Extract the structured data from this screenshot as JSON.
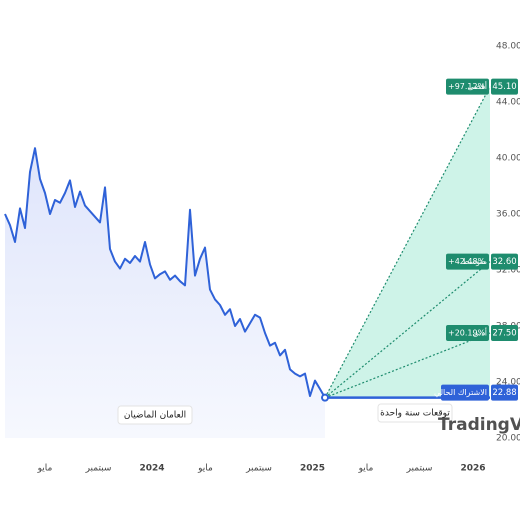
{
  "chart_data": {
    "type": "line",
    "series": [
      {
        "color": "#2f62d8",
        "values": [
          36.0,
          35.2,
          34.0,
          36.4,
          35.0,
          39.0,
          40.7,
          38.5,
          37.5,
          36.0,
          37.0,
          36.8,
          37.5,
          38.4,
          36.5,
          37.6,
          36.6,
          36.2,
          35.8,
          35.4,
          37.9,
          33.5,
          32.6,
          32.1,
          32.8,
          32.5,
          33.0,
          32.6,
          34.0,
          32.4,
          31.4,
          31.7,
          31.9,
          31.3,
          31.6,
          31.2,
          30.9,
          36.3,
          31.6,
          32.8,
          33.6,
          30.6,
          29.9,
          29.5,
          28.8,
          29.2,
          28.0,
          28.5,
          27.6,
          28.2,
          28.8,
          28.6,
          27.5,
          26.6,
          26.8,
          25.9,
          26.3,
          24.9,
          24.6,
          24.4,
          24.6,
          23.0,
          24.1,
          23.5,
          22.88
        ]
      }
    ],
    "ylim": [
      20,
      48
    ],
    "yticks": [
      {
        "value": 20,
        "label": "20.00"
      },
      {
        "value": 24,
        "label": "24.00"
      },
      {
        "value": 28,
        "label": "28.00"
      },
      {
        "value": 32,
        "label": "32.00"
      },
      {
        "value": 36,
        "label": "36.00"
      },
      {
        "value": 40,
        "label": "40.00"
      },
      {
        "value": 44,
        "label": "44.00"
      },
      {
        "value": 48,
        "label": "48.00"
      }
    ],
    "x_labels": [
      "مايو",
      "سبتمبر",
      "2024",
      "مايو",
      "سبتمبر",
      "2025",
      "مايو",
      "سبتمبر",
      "2026"
    ],
    "forecast": {
      "color": "#1e8c6e",
      "levels": [
        {
          "name": "أقصى",
          "change": 97.12,
          "change_label": "+97.12%",
          "value": 45.1,
          "value_label": "45.10"
        },
        {
          "name": "متوسط",
          "change": 42.48,
          "change_label": "+42.48%",
          "value": 32.6,
          "value_label": "32.60"
        },
        {
          "name": "أدنى",
          "change": 20.19,
          "change_label": "+20.19%",
          "value": 27.5,
          "value_label": "27.50"
        }
      ],
      "current": {
        "name": "الاشتراك الحالي",
        "value": 22.88,
        "value_label": "22.88",
        "color": "#2f62d8"
      }
    },
    "annotations": [
      "العامان الماضيان",
      "توقعات سنة واحدة"
    ],
    "watermark": "TradingView"
  }
}
